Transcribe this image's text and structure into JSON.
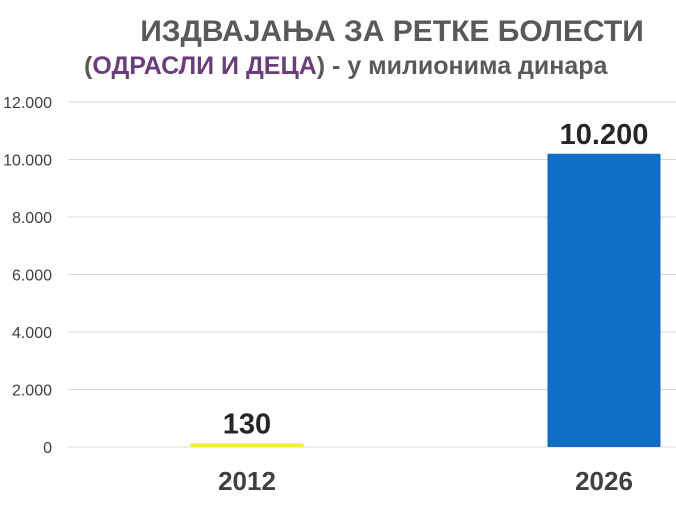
{
  "title": {
    "line1": "ИЗДВАЈАЊА ЗА РЕТКЕ БОЛЕСТИ",
    "line2_open": "(",
    "line2_highlight": "ОДРАСЛИ И ДЕЦА",
    "line2_rest": ") - у милионима динара"
  },
  "colors": {
    "title": "#595959",
    "highlight": "#6b3d7f",
    "bar_2012": "#f2ee3c",
    "bar_2026": "#0f6fc6",
    "gridline": "#d9d9d9"
  },
  "chart_data": {
    "type": "bar",
    "title": "ИЗДВАЈАЊА ЗА РЕТКЕ БОЛЕСТИ (ОДРАСЛИ И ДЕЦА) - у милионима динара",
    "categories": [
      "2012",
      "2026"
    ],
    "values": [
      130,
      10200
    ],
    "value_labels": [
      "130",
      "10.200"
    ],
    "xlabel": "",
    "ylabel": "",
    "ylim": [
      0,
      12000
    ],
    "yticks": [
      0,
      2000,
      4000,
      6000,
      8000,
      10000,
      12000
    ],
    "ytick_labels": [
      "0",
      "2.000",
      "4.000",
      "6.000",
      "8.000",
      "10.000",
      "12.000"
    ],
    "grid": true,
    "legend": "none"
  }
}
